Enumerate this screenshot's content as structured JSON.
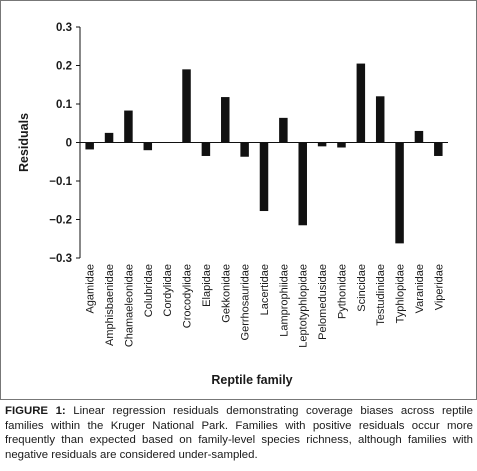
{
  "chart_data": {
    "type": "bar",
    "ylabel": "Residuals",
    "xlabel": "Reptile family",
    "ylim": [
      -0.3,
      0.3
    ],
    "yticks": [
      0.3,
      0.2,
      0.1,
      0,
      -0.1,
      -0.2,
      -0.3
    ],
    "ytick_labels": [
      "0.3",
      "0.2",
      "0.1",
      "0",
      "−0.1",
      "−0.2",
      "−0.3"
    ],
    "grid": false,
    "bar_color": "#111111",
    "categories": [
      "Agamidae",
      "Amphisbaenidae",
      "Chamaeleonidae",
      "Colubridae",
      "Cordylidae",
      "Crocodylidae",
      "Elapidae",
      "Gekkonidae",
      "Gerrhosauridae",
      "Lacertidae",
      "Lamprophiidae",
      "Leptotyphlopidae",
      "Pelomedusidae",
      "Pythonidae",
      "Scincidae",
      "Testudinidae",
      "Typhlopidae",
      "Varanidae",
      "Viperidae"
    ],
    "values": [
      -0.018,
      0.025,
      0.083,
      -0.02,
      0.0,
      0.19,
      -0.035,
      0.118,
      -0.037,
      -0.178,
      0.064,
      -0.215,
      -0.01,
      -0.013,
      0.205,
      0.12,
      -0.262,
      0.03,
      -0.035
    ]
  },
  "caption": {
    "label": "FIGURE 1:",
    "text": " Linear regression residuals demonstrating coverage biases across reptile families within the Kruger National Park. Families with positive residuals occur more frequently than expected based on family-level species richness, although families with negative residuals are considered under-sampled."
  }
}
